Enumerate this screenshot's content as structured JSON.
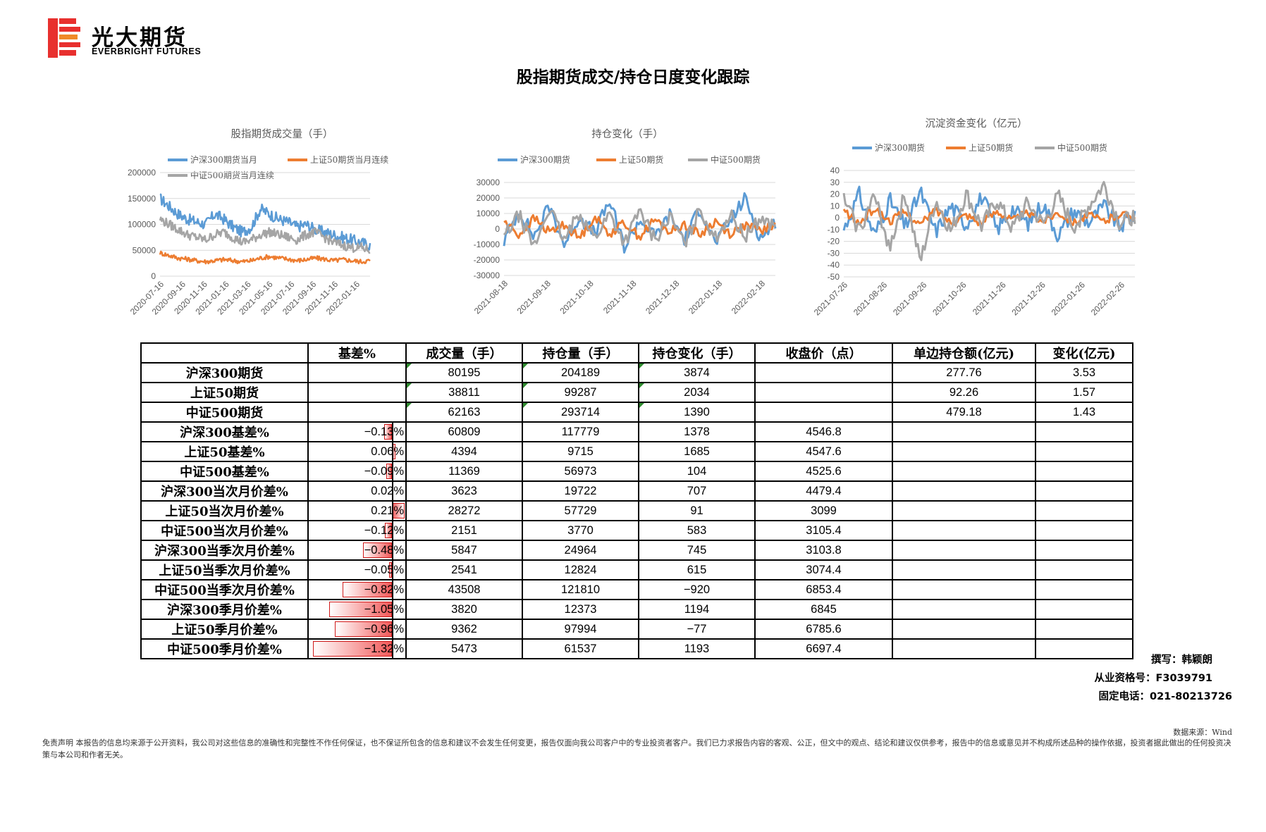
{
  "logo": {
    "cn": "光大期货",
    "en": "EVERBRIGHT FUTURES"
  },
  "title": "股指期货成交/持仓日度变化跟踪",
  "colors": {
    "hs300": "#5b9bd5",
    "sz50": "#ed7d31",
    "zz500": "#a5a5a5",
    "bar_red": "#e8302e",
    "tri_green": "#2e8b2e"
  },
  "charts": [
    {
      "title": "股指期货成交量（手）",
      "legend": [
        "沪深300期货当月",
        "上证50期货当月连续",
        "中证500期货当月连续"
      ],
      "y_ticks": [
        "200000",
        "150000",
        "100000",
        "50000",
        "0"
      ],
      "x_ticks": [
        "2020-07-16",
        "2020-09-16",
        "2020-11-16",
        "2021-01-16",
        "2021-03-16",
        "2021-05-16",
        "2021-07-16",
        "2021-09-16",
        "2021-11-16",
        "2022-01-16"
      ]
    },
    {
      "title": "持仓变化（手）",
      "legend": [
        "沪深300期货",
        "上证50期货",
        "中证500期货"
      ],
      "y_ticks": [
        "30000",
        "20000",
        "10000",
        "0",
        "-10000",
        "-20000",
        "-30000"
      ],
      "x_ticks": [
        "2021-08-18",
        "2021-09-18",
        "2021-10-18",
        "2021-11-18",
        "2021-12-18",
        "2022-01-18",
        "2022-02-18"
      ]
    },
    {
      "title": "沉淀资金变化（亿元）",
      "legend": [
        "沪深300期货",
        "上证50期货",
        "中证500期货"
      ],
      "y_ticks": [
        "40",
        "30",
        "20",
        "10",
        "0",
        "-10",
        "-20",
        "-30",
        "-40",
        "-50"
      ],
      "x_ticks": [
        "2021-07-26",
        "2021-08-26",
        "2021-09-26",
        "2021-10-26",
        "2021-11-26",
        "2021-12-26",
        "2022-01-26",
        "2022-02-26"
      ]
    }
  ],
  "chart_data": [
    {
      "type": "line",
      "title": "股指期货成交量（手）",
      "ylim": [
        0,
        200000
      ],
      "x_range": [
        "2020-07-16",
        "2022-03"
      ],
      "series": [
        {
          "name": "沪深300期货当月",
          "values": [
            150000,
            135000,
            120000,
            110000,
            105000,
            100000,
            120000,
            110000,
            95000,
            85000,
            95000,
            130000,
            120000,
            110000,
            105000,
            95000,
            100000,
            90000,
            85000,
            80000,
            75000,
            70000,
            65000,
            60000
          ]
        },
        {
          "name": "上证50期货当月连续",
          "values": [
            45000,
            40000,
            35000,
            33000,
            30000,
            28000,
            30000,
            32000,
            30000,
            28000,
            30000,
            35000,
            38000,
            35000,
            33000,
            30000,
            32000,
            35000,
            33000,
            30000,
            32000,
            30000,
            28000,
            30000
          ]
        },
        {
          "name": "中证500期货当月连续",
          "values": [
            110000,
            100000,
            90000,
            80000,
            75000,
            70000,
            80000,
            85000,
            75000,
            65000,
            70000,
            80000,
            85000,
            80000,
            75000,
            70000,
            80000,
            85000,
            75000,
            65000,
            60000,
            55000,
            55000,
            50000
          ]
        }
      ]
    },
    {
      "type": "line",
      "title": "持仓变化（手）",
      "ylim": [
        -30000,
        30000
      ],
      "x_range": [
        "2021-08-18",
        "2022-02-28"
      ],
      "series": [
        {
          "name": "沪深300期货",
          "values": [
            -8000,
            12000,
            -5000,
            15000,
            -10000,
            8000,
            -3000,
            18000,
            -12000,
            6000,
            -5000,
            9000,
            -7000,
            14000,
            -9000,
            5000,
            20000,
            -6000,
            3874
          ]
        },
        {
          "name": "上证50期货",
          "values": [
            5000,
            -4000,
            7000,
            -2000,
            3000,
            -6000,
            8000,
            -3000,
            4000,
            -5000,
            6000,
            -2000,
            3000,
            -4000,
            5000,
            -3000,
            2000,
            -1000,
            2034
          ]
        },
        {
          "name": "中证500期货",
          "values": [
            -5000,
            9000,
            -12000,
            14000,
            -8000,
            11000,
            -6000,
            10000,
            -9000,
            12000,
            -7000,
            8000,
            -10000,
            13000,
            -6000,
            9000,
            -5000,
            7000,
            1390
          ]
        }
      ]
    },
    {
      "type": "line",
      "title": "沉淀资金变化（亿元）",
      "ylim": [
        -50,
        40
      ],
      "x_range": [
        "2021-07-26",
        "2022-02-28"
      ],
      "series": [
        {
          "name": "沪深300期货",
          "values": [
            -10,
            20,
            -15,
            15,
            -8,
            22,
            -12,
            10,
            -6,
            18,
            -10,
            8,
            -5,
            12,
            -15,
            6,
            -4,
            10,
            -8,
            3.53
          ]
        },
        {
          "name": "上证50期货",
          "values": [
            6,
            -5,
            8,
            -3,
            5,
            -6,
            7,
            -4,
            3,
            -5,
            6,
            -2,
            4,
            -3,
            5,
            -4,
            2,
            -3,
            3,
            1.57
          ]
        },
        {
          "name": "中证500期货",
          "values": [
            15,
            -10,
            18,
            -25,
            20,
            -38,
            15,
            -12,
            20,
            -8,
            15,
            -10,
            12,
            -6,
            18,
            -8,
            10,
            28,
            -5,
            1.43
          ]
        }
      ]
    }
  ],
  "table": {
    "headers": [
      "",
      "基差%",
      "成交量（手）",
      "持仓量（手）",
      "持仓变化（手）",
      "收盘价（点）",
      "单边持仓额(亿元)",
      "变化(亿元)"
    ],
    "rows": [
      {
        "label": "沪深300期货",
        "basis": "",
        "basis_value": null,
        "vol": "80195",
        "oi": "204189",
        "chg": "3874",
        "close": "",
        "amt": "277.76",
        "amt_chg": "3.53",
        "flag": true
      },
      {
        "label": "上证50期货",
        "basis": "",
        "basis_value": null,
        "vol": "38811",
        "oi": "99287",
        "chg": "2034",
        "close": "",
        "amt": "92.26",
        "amt_chg": "1.57",
        "flag": true
      },
      {
        "label": "中证500期货",
        "basis": "",
        "basis_value": null,
        "vol": "62163",
        "oi": "293714",
        "chg": "1390",
        "close": "",
        "amt": "479.18",
        "amt_chg": "1.43",
        "flag": true
      },
      {
        "label": "沪深300基差%",
        "basis": "−0.13%",
        "basis_value": -0.13,
        "vol": "60809",
        "oi": "117779",
        "chg": "1378",
        "close": "4546.8",
        "amt": "",
        "amt_chg": "",
        "flag": false
      },
      {
        "label": "上证50基差%",
        "basis": "0.06%",
        "basis_value": 0.06,
        "vol": "4394",
        "oi": "9715",
        "chg": "1685",
        "close": "4547.6",
        "amt": "",
        "amt_chg": "",
        "flag": false
      },
      {
        "label": "中证500基差%",
        "basis": "−0.09%",
        "basis_value": -0.09,
        "vol": "11369",
        "oi": "56973",
        "chg": "104",
        "close": "4525.6",
        "amt": "",
        "amt_chg": "",
        "flag": false
      },
      {
        "label": "沪深300当次月价差%",
        "basis": "0.02%",
        "basis_value": 0.02,
        "vol": "3623",
        "oi": "19722",
        "chg": "707",
        "close": "4479.4",
        "amt": "",
        "amt_chg": "",
        "flag": false
      },
      {
        "label": "上证50当次月价差%",
        "basis": "0.21%",
        "basis_value": 0.21,
        "vol": "28272",
        "oi": "57729",
        "chg": "91",
        "close": "3099",
        "amt": "",
        "amt_chg": "",
        "flag": false
      },
      {
        "label": "中证500当次月价差%",
        "basis": "−0.12%",
        "basis_value": -0.12,
        "vol": "2151",
        "oi": "3770",
        "chg": "583",
        "close": "3105.4",
        "amt": "",
        "amt_chg": "",
        "flag": false
      },
      {
        "label": "沪深300当季次月价差%",
        "basis": "−0.48%",
        "basis_value": -0.48,
        "vol": "5847",
        "oi": "24964",
        "chg": "745",
        "close": "3103.8",
        "amt": "",
        "amt_chg": "",
        "flag": false
      },
      {
        "label": "上证50当季次月价差%",
        "basis": "−0.05%",
        "basis_value": -0.05,
        "vol": "2541",
        "oi": "12824",
        "chg": "615",
        "close": "3074.4",
        "amt": "",
        "amt_chg": "",
        "flag": false
      },
      {
        "label": "中证500当季次月价差%",
        "basis": "−0.82%",
        "basis_value": -0.82,
        "vol": "43508",
        "oi": "121810",
        "chg": "−920",
        "close": "6853.4",
        "amt": "",
        "amt_chg": "",
        "flag": false
      },
      {
        "label": "沪深300季月价差%",
        "basis": "−1.05%",
        "basis_value": -1.05,
        "vol": "3820",
        "oi": "12373",
        "chg": "1194",
        "close": "6845",
        "amt": "",
        "amt_chg": "",
        "flag": false
      },
      {
        "label": "上证50季月价差%",
        "basis": "−0.96%",
        "basis_value": -0.96,
        "vol": "9362",
        "oi": "97994",
        "chg": "−77",
        "close": "6785.6",
        "amt": "",
        "amt_chg": "",
        "flag": false
      },
      {
        "label": "中证500季月价差%",
        "basis": "−1.32%",
        "basis_value": -1.32,
        "vol": "5473",
        "oi": "61537",
        "chg": "1193",
        "close": "6697.4",
        "amt": "",
        "amt_chg": "",
        "flag": false
      }
    ]
  },
  "signature": {
    "author": "撰写：韩颖朗",
    "license": "从业资格号：F3039791",
    "phone": "固定电话：021-80213726"
  },
  "source": "数据来源：Wind",
  "disclaimer": "免责声明    本报告的信息均来源于公开资料，我公司对这些信息的准确性和完整性不作任何保证，也不保证所包含的信息和建议不会发生任何变更，报告仅面向我公司客户中的专业投资者客户。我们已力求报告内容的客观、公正，但文中的观点、结论和建议仅供参考，报告中的信息或意见并不构成所述品种的操作依据，投资者据此做出的任何投资决策与本公司和作者无关。"
}
